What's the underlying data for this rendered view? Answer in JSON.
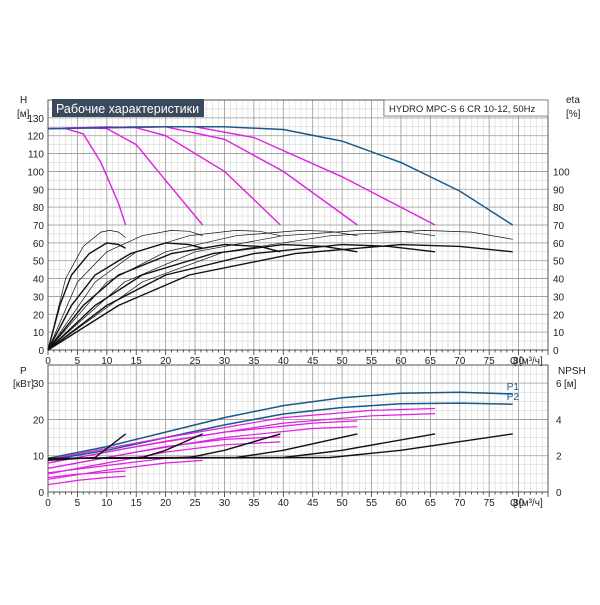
{
  "chart_data": [
    {
      "type": "line",
      "title": "Рабочие характеристики",
      "subtitle": "HYDRO MPC-S 6 CR 10-12, 50Hz",
      "xlabel": "Q [м³/ч]",
      "ylabel_left": "H [м]",
      "ylabel_right": "eta [%]",
      "xlim": [
        0,
        85
      ],
      "ylim": [
        0,
        140
      ],
      "x_ticks": [
        0,
        5,
        10,
        15,
        20,
        25,
        30,
        35,
        40,
        45,
        50,
        55,
        60,
        65,
        70,
        75,
        80
      ],
      "y_ticks_left": [
        0,
        10,
        20,
        30,
        40,
        50,
        60,
        70,
        80,
        90,
        100,
        110,
        120,
        130
      ],
      "y_ticks_right": [
        0,
        10,
        20,
        30,
        40,
        50,
        60,
        70,
        80,
        90,
        100
      ],
      "grid": true,
      "series": [
        {
          "role": "head-reduced-speed",
          "color": "#e020e0",
          "points": [
            [
              0,
              124
            ],
            [
              3,
              124
            ],
            [
              6,
              121
            ],
            [
              9,
              105
            ],
            [
              12,
              82
            ],
            [
              13.2,
              70
            ]
          ]
        },
        {
          "role": "head-reduced-speed",
          "color": "#e020e0",
          "points": [
            [
              0,
              124
            ],
            [
              6,
              124.5
            ],
            [
              10,
              124
            ],
            [
              15,
              115
            ],
            [
              20,
              95
            ],
            [
              26.3,
              70
            ]
          ]
        },
        {
          "role": "head-reduced-speed",
          "color": "#e020e0",
          "points": [
            [
              0,
              124
            ],
            [
              10,
              125
            ],
            [
              15,
              124.5
            ],
            [
              20,
              120
            ],
            [
              30,
              100
            ],
            [
              39.5,
              70
            ]
          ]
        },
        {
          "role": "head-reduced-speed",
          "color": "#e020e0",
          "points": [
            [
              0,
              124
            ],
            [
              15,
              125
            ],
            [
              20,
              125
            ],
            [
              30,
              118
            ],
            [
              40,
              100
            ],
            [
              52.6,
              70
            ]
          ]
        },
        {
          "role": "head-reduced-speed",
          "color": "#e020e0",
          "points": [
            [
              0,
              124
            ],
            [
              20,
              125
            ],
            [
              25,
              125
            ],
            [
              35,
              119
            ],
            [
              50,
              97
            ],
            [
              65.8,
              70
            ]
          ]
        },
        {
          "role": "head-max-speed",
          "color": "#1a5a8a",
          "points": [
            [
              0,
              124
            ],
            [
              20,
              125
            ],
            [
              30,
              125
            ],
            [
              40,
              123.5
            ],
            [
              50,
              117
            ],
            [
              60,
              105
            ],
            [
              70,
              89
            ],
            [
              79,
              70
            ]
          ]
        },
        {
          "role": "efficiency",
          "color": "#111111",
          "points": [
            [
              0,
              0
            ],
            [
              3,
              40
            ],
            [
              6,
              58
            ],
            [
              9,
              66
            ],
            [
              10.5,
              67
            ],
            [
              12,
              66
            ],
            [
              13.2,
              63
            ]
          ]
        },
        {
          "role": "efficiency",
          "color": "#111111",
          "points": [
            [
              0,
              0
            ],
            [
              5,
              38
            ],
            [
              10,
              55
            ],
            [
              16,
              64
            ],
            [
              21,
              67
            ],
            [
              24,
              66.5
            ],
            [
              26.3,
              64
            ]
          ]
        },
        {
          "role": "efficiency",
          "color": "#111111",
          "points": [
            [
              0,
              0
            ],
            [
              8,
              38
            ],
            [
              15,
              55
            ],
            [
              24,
              64
            ],
            [
              32,
              67
            ],
            [
              36,
              66.5
            ],
            [
              39.5,
              64
            ]
          ]
        },
        {
          "role": "efficiency",
          "color": "#111111",
          "points": [
            [
              0,
              0
            ],
            [
              10,
              38
            ],
            [
              20,
              55
            ],
            [
              32,
              64
            ],
            [
              43,
              67
            ],
            [
              48,
              66.5
            ],
            [
              52.6,
              64
            ]
          ]
        },
        {
          "role": "efficiency",
          "color": "#111111",
          "points": [
            [
              0,
              0
            ],
            [
              13,
              38
            ],
            [
              25,
              55
            ],
            [
              40,
              64
            ],
            [
              53,
              67
            ],
            [
              60,
              66.5
            ],
            [
              65.8,
              64
            ]
          ]
        },
        {
          "role": "efficiency",
          "color": "#111111",
          "points": [
            [
              0,
              0
            ],
            [
              16,
              38
            ],
            [
              30,
              55
            ],
            [
              48,
              64
            ],
            [
              64,
              67
            ],
            [
              72,
              66
            ],
            [
              79,
              62
            ]
          ]
        },
        {
          "role": "efficiency-eq",
          "color": "#111111",
          "points": [
            [
              0,
              0
            ],
            [
              2,
              25
            ],
            [
              4,
              42
            ],
            [
              7,
              54
            ],
            [
              10,
              60
            ],
            [
              12,
              59
            ],
            [
              13.2,
              57
            ]
          ]
        },
        {
          "role": "efficiency-eq",
          "color": "#111111",
          "points": [
            [
              0,
              0
            ],
            [
              4,
              25
            ],
            [
              8,
              42
            ],
            [
              14,
              54
            ],
            [
              20,
              60
            ],
            [
              24,
              59
            ],
            [
              26.3,
              57
            ]
          ]
        },
        {
          "role": "efficiency-eq",
          "color": "#111111",
          "points": [
            [
              0,
              0
            ],
            [
              6,
              25
            ],
            [
              12,
              42
            ],
            [
              21,
              54
            ],
            [
              30,
              59
            ],
            [
              36,
              58
            ],
            [
              39.5,
              55
            ]
          ]
        },
        {
          "role": "efficiency-eq",
          "color": "#111111",
          "points": [
            [
              0,
              0
            ],
            [
              8,
              25
            ],
            [
              16,
              42
            ],
            [
              28,
              54
            ],
            [
              40,
              59
            ],
            [
              47,
              58
            ],
            [
              52.6,
              55
            ]
          ]
        },
        {
          "role": "efficiency-eq",
          "color": "#111111",
          "points": [
            [
              0,
              0
            ],
            [
              10,
              25
            ],
            [
              20,
              42
            ],
            [
              35,
              54
            ],
            [
              50,
              59
            ],
            [
              58,
              58
            ],
            [
              65.8,
              55
            ]
          ]
        },
        {
          "role": "efficiency-eq",
          "color": "#111111",
          "points": [
            [
              0,
              0
            ],
            [
              12,
              25
            ],
            [
              24,
              42
            ],
            [
              42,
              54
            ],
            [
              60,
              59
            ],
            [
              70,
              58
            ],
            [
              79,
              55
            ]
          ]
        }
      ]
    },
    {
      "type": "line",
      "xlabel": "Q [м³/ч]",
      "ylabel_left": "P [кВт]",
      "ylabel_right": "NPSH [м]",
      "xlim": [
        0,
        85
      ],
      "ylim": [
        0,
        35
      ],
      "x_ticks": [
        0,
        5,
        10,
        15,
        20,
        25,
        30,
        35,
        40,
        45,
        50,
        55,
        60,
        65,
        70,
        75,
        80
      ],
      "y_ticks_left": [
        0,
        10,
        20,
        30
      ],
      "y_ticks_right": [
        0,
        2,
        4,
        6
      ],
      "grid": true,
      "series_labels": [
        "P1",
        "P2"
      ],
      "series": [
        {
          "name": "P1",
          "color": "#1a5a8a",
          "points": [
            [
              0,
              9.3
            ],
            [
              10,
              12.5
            ],
            [
              20,
              16.5
            ],
            [
              30,
              20.5
            ],
            [
              40,
              23.8
            ],
            [
              50,
              26
            ],
            [
              60,
              27.2
            ],
            [
              70,
              27.5
            ],
            [
              79,
              27
            ]
          ]
        },
        {
          "name": "P2",
          "color": "#1a5a8a",
          "points": [
            [
              0,
              8.8
            ],
            [
              10,
              11.5
            ],
            [
              20,
              15
            ],
            [
              30,
              18.5
            ],
            [
              40,
              21.5
            ],
            [
              50,
              23.3
            ],
            [
              60,
              24.3
            ],
            [
              70,
              24.5
            ],
            [
              79,
              24.2
            ]
          ]
        },
        {
          "role": "power-reduced-speed",
          "color": "#e020e0",
          "points": [
            [
              0,
              2
            ],
            [
              5,
              3.2
            ],
            [
              10,
              4
            ],
            [
              13.2,
              4.3
            ]
          ]
        },
        {
          "role": "power-reduced-speed",
          "color": "#e020e0",
          "points": [
            [
              0,
              4
            ],
            [
              5,
              4.9
            ],
            [
              10,
              5.4
            ],
            [
              13.2,
              5.8
            ]
          ]
        },
        {
          "role": "power-reduced-speed",
          "color": "#e020e0",
          "points": [
            [
              0,
              3.5
            ],
            [
              10,
              6
            ],
            [
              20,
              8
            ],
            [
              26.3,
              8.7
            ]
          ]
        },
        {
          "role": "power-reduced-speed",
          "color": "#e020e0",
          "points": [
            [
              0,
              5.3
            ],
            [
              10,
              7.3
            ],
            [
              20,
              9.3
            ],
            [
              26.3,
              10
            ]
          ]
        },
        {
          "role": "power-reduced-speed",
          "color": "#e020e0",
          "points": [
            [
              0,
              5
            ],
            [
              10,
              8
            ],
            [
              20,
              11
            ],
            [
              30,
              13
            ],
            [
              39.5,
              13.8
            ]
          ]
        },
        {
          "role": "power-reduced-speed",
          "color": "#e020e0",
          "points": [
            [
              0,
              6.5
            ],
            [
              10,
              9.5
            ],
            [
              20,
              12.5
            ],
            [
              30,
              14.5
            ],
            [
              39.5,
              15.2
            ]
          ]
        },
        {
          "role": "power-reduced-speed",
          "color": "#e020e0",
          "points": [
            [
              0,
              6.5
            ],
            [
              15,
              11
            ],
            [
              30,
              15
            ],
            [
              45,
              17.5
            ],
            [
              52.6,
              18
            ]
          ]
        },
        {
          "role": "power-reduced-speed",
          "color": "#e020e0",
          "points": [
            [
              0,
              8
            ],
            [
              15,
              12.5
            ],
            [
              30,
              16.5
            ],
            [
              45,
              19
            ],
            [
              52.6,
              19.6
            ]
          ]
        },
        {
          "role": "power-reduced-speed",
          "color": "#e020e0",
          "points": [
            [
              0,
              8
            ],
            [
              20,
              14
            ],
            [
              40,
              19
            ],
            [
              55,
              21
            ],
            [
              65.8,
              21.6
            ]
          ]
        },
        {
          "role": "power-reduced-speed",
          "color": "#e020e0",
          "points": [
            [
              0,
              9
            ],
            [
              20,
              15
            ],
            [
              40,
              20.5
            ],
            [
              55,
              22.5
            ],
            [
              65.8,
              23
            ]
          ]
        },
        {
          "role": "npsh",
          "color": "#111111",
          "points": [
            [
              0,
              1.75
            ],
            [
              8,
              1.9
            ],
            [
              10,
              2.4
            ],
            [
              13.2,
              3.2
            ]
          ]
        },
        {
          "role": "npsh",
          "color": "#111111",
          "points": [
            [
              0,
              1.85
            ],
            [
              16,
              1.9
            ],
            [
              20,
              2.3
            ],
            [
              26.3,
              3.2
            ]
          ]
        },
        {
          "role": "npsh",
          "color": "#111111",
          "points": [
            [
              0,
              1.85
            ],
            [
              24,
              1.9
            ],
            [
              30,
              2.3
            ],
            [
              39.5,
              3.2
            ]
          ]
        },
        {
          "role": "npsh",
          "color": "#111111",
          "points": [
            [
              0,
              1.85
            ],
            [
              32,
              1.9
            ],
            [
              40,
              2.3
            ],
            [
              52.6,
              3.2
            ]
          ]
        },
        {
          "role": "npsh",
          "color": "#111111",
          "points": [
            [
              0,
              1.85
            ],
            [
              40,
              1.9
            ],
            [
              50,
              2.3
            ],
            [
              65.8,
              3.2
            ]
          ]
        },
        {
          "role": "npsh",
          "color": "#111111",
          "points": [
            [
              0,
              1.85
            ],
            [
              48,
              1.9
            ],
            [
              60,
              2.3
            ],
            [
              79,
              3.2
            ]
          ]
        }
      ]
    }
  ]
}
